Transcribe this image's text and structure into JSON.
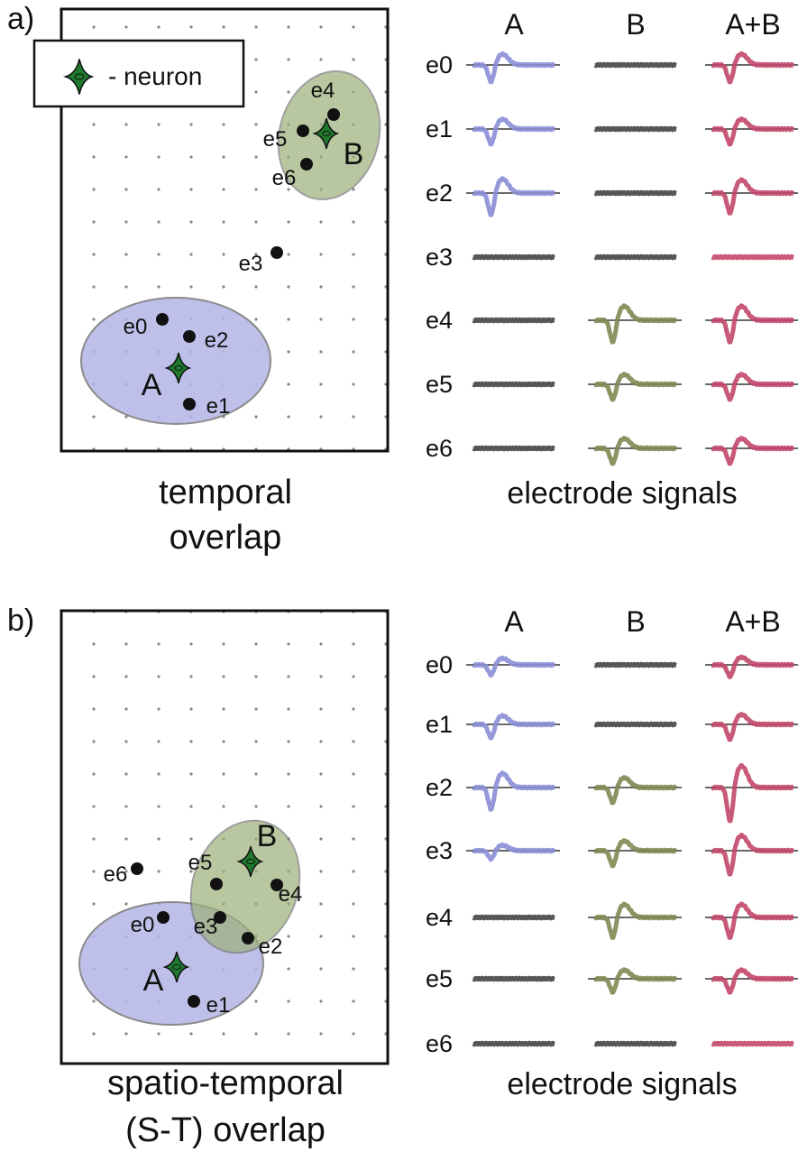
{
  "panels": [
    {
      "label": "a)",
      "legend": "- neuron",
      "neurons": [
        "A",
        "B"
      ],
      "electrodes": [
        "e0",
        "e1",
        "e2",
        "e3",
        "e4",
        "e5",
        "e6"
      ],
      "caption": [
        "temporal",
        "overlap"
      ],
      "columns": [
        "A",
        "B",
        "A+B"
      ],
      "rows": [
        "e0",
        "e1",
        "e2",
        "e3",
        "e4",
        "e5",
        "e6"
      ],
      "signals_caption": "electrode signals"
    },
    {
      "label": "b)",
      "neurons": [
        "A",
        "B"
      ],
      "electrodes": [
        "e0",
        "e1",
        "e2",
        "e3",
        "e4",
        "e5",
        "e6"
      ],
      "caption": [
        "spatio-temporal",
        "(S-T) overlap"
      ],
      "columns": [
        "A",
        "B",
        "A+B"
      ],
      "rows": [
        "e0",
        "e1",
        "e2",
        "e3",
        "e4",
        "e5",
        "e6"
      ],
      "signals_caption": "electrode signals"
    }
  ]
}
